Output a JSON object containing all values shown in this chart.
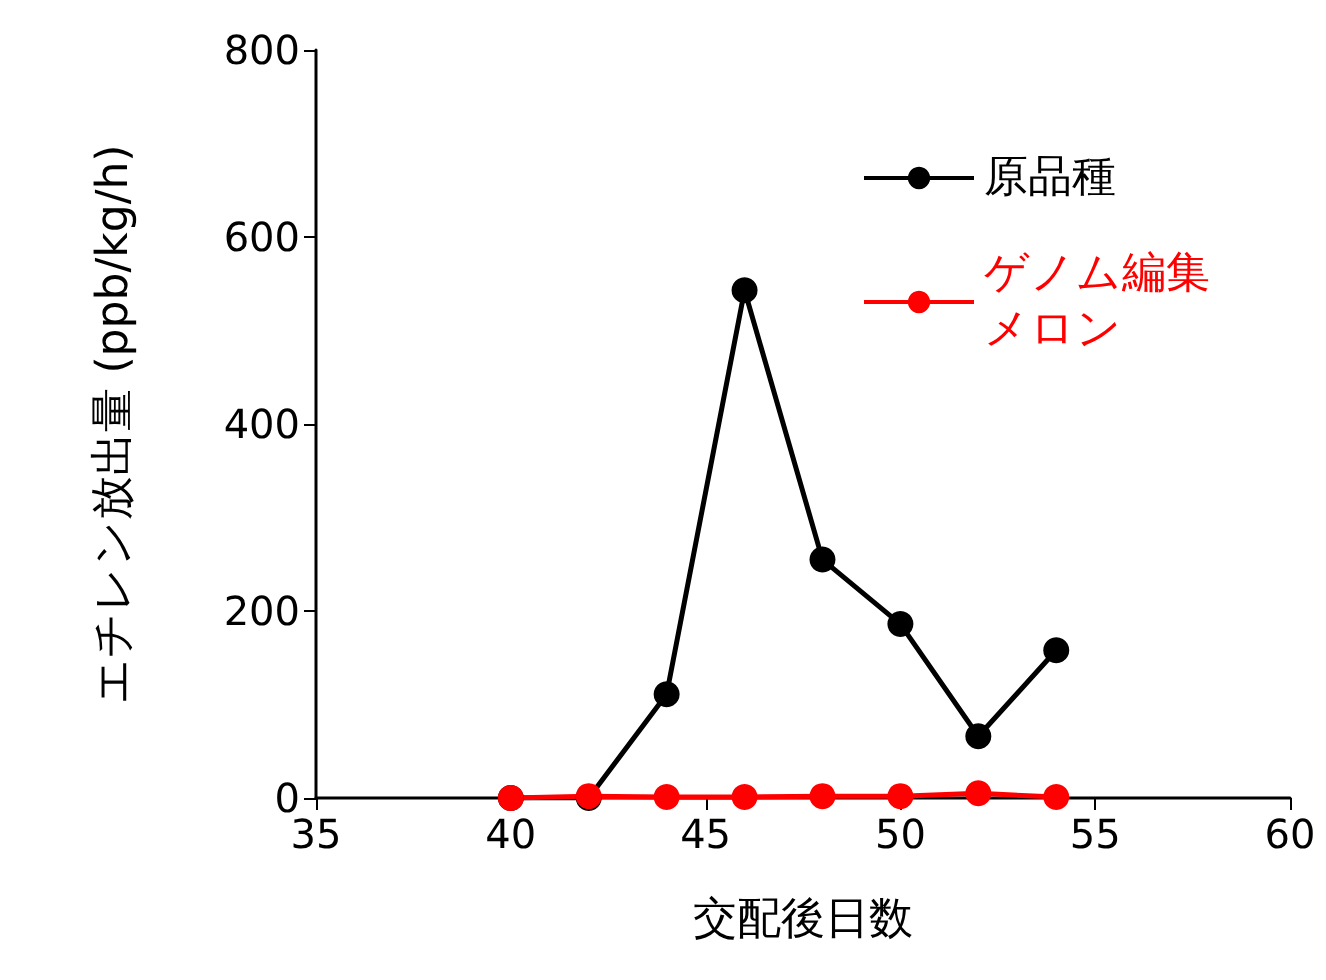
{
  "chart_data": {
    "type": "line",
    "xlabel": "交配後日数",
    "ylabel": "エチレン放出量 (ppb/kg/h)",
    "xlim": [
      35,
      60
    ],
    "xticks": [
      35,
      40,
      45,
      50,
      55,
      60
    ],
    "ylim": [
      0,
      800
    ],
    "yticks": [
      0,
      200,
      400,
      600,
      800
    ],
    "grid": false,
    "legend": "top right",
    "marker": "circle",
    "line_style": "solid",
    "series": [
      {
        "name": "原品種",
        "color": "#000000",
        "x": [
          40,
          42,
          44,
          46,
          48,
          50,
          52,
          54
        ],
        "values": [
          0,
          0,
          111,
          543,
          255,
          186,
          66,
          158
        ]
      },
      {
        "name": "ゲノム編集メロン",
        "color": "#ff0000",
        "x": [
          40,
          42,
          44,
          46,
          48,
          50,
          52,
          54
        ],
        "values": [
          0,
          2,
          1,
          1,
          2,
          2,
          5,
          1
        ]
      }
    ]
  }
}
